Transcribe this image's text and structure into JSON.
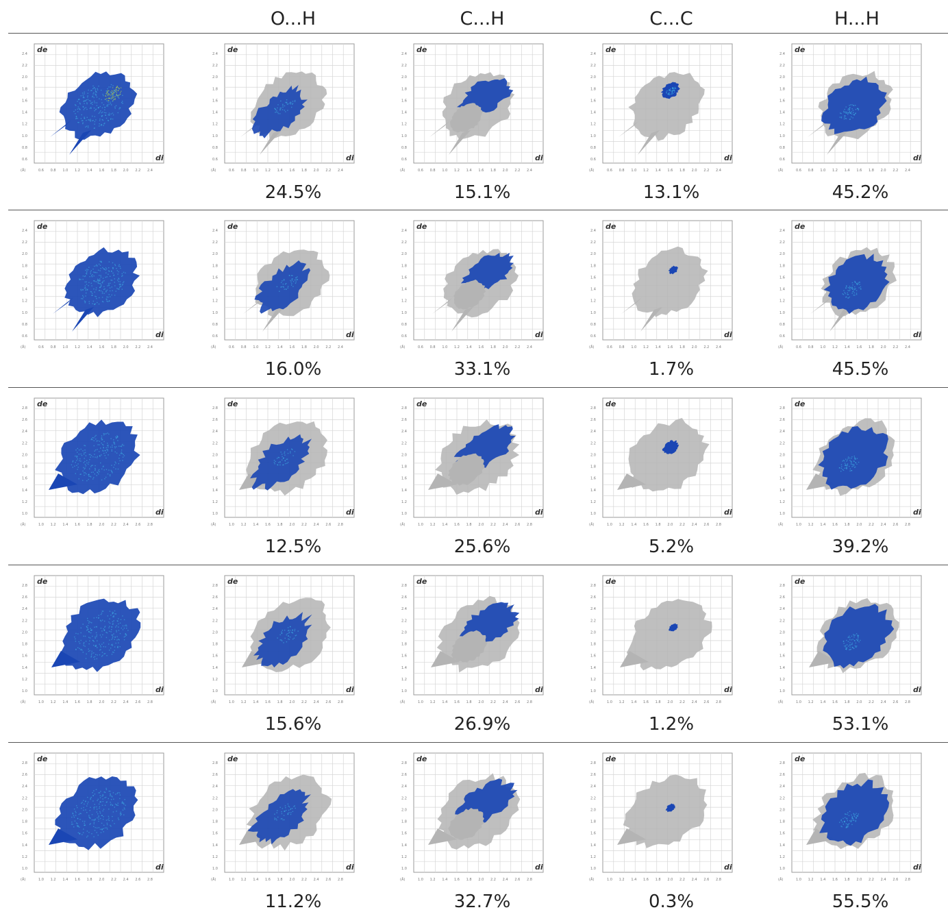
{
  "header": {
    "columns": [
      "",
      "O...H",
      "C...H",
      "C...C",
      "H...H"
    ]
  },
  "plot_labels": {
    "de": "de",
    "di": "di",
    "unit": "(Å)"
  },
  "colors": {
    "gray": "#b4b4b4",
    "blue": "#1a46b4",
    "cyan": "#3fb6e8",
    "yellow": "#b8d84a"
  },
  "chart_data": {
    "type": "table",
    "columns": [
      "O...H",
      "C...H",
      "C...C",
      "H...H"
    ],
    "rows": [
      {
        "values": [
          "24.5%",
          "15.1%",
          "13.1%",
          "45.2%"
        ]
      },
      {
        "values": [
          "16.0%",
          "33.1%",
          "1.7%",
          "45.5%"
        ]
      },
      {
        "values": [
          "12.5%",
          "25.6%",
          "5.2%",
          "39.2%"
        ]
      },
      {
        "values": [
          "15.6%",
          "26.9%",
          "1.2%",
          "53.1%"
        ]
      },
      {
        "values": [
          "11.2%",
          "32.7%",
          "0.3%",
          "55.5%"
        ]
      }
    ],
    "axis_ticks": {
      "rows_1_2": {
        "x": [
          "0.6",
          "0.8",
          "1.0",
          "1.2",
          "1.4",
          "1.6",
          "1.8",
          "2.0",
          "2.2",
          "2.4"
        ],
        "y": [
          "2.4",
          "2.2",
          "2.0",
          "1.8",
          "1.6",
          "1.4",
          "1.2",
          "1.0",
          "0.8",
          "0.6"
        ]
      },
      "rows_3_5": {
        "x": [
          "1.0",
          "1.2",
          "1.4",
          "1.6",
          "1.8",
          "2.0",
          "2.2",
          "2.4",
          "2.6",
          "2.8"
        ],
        "y": [
          "2.8",
          "2.6",
          "2.4",
          "2.2",
          "2.0",
          "1.8",
          "1.6",
          "1.4",
          "1.2",
          "1.0"
        ]
      }
    }
  }
}
